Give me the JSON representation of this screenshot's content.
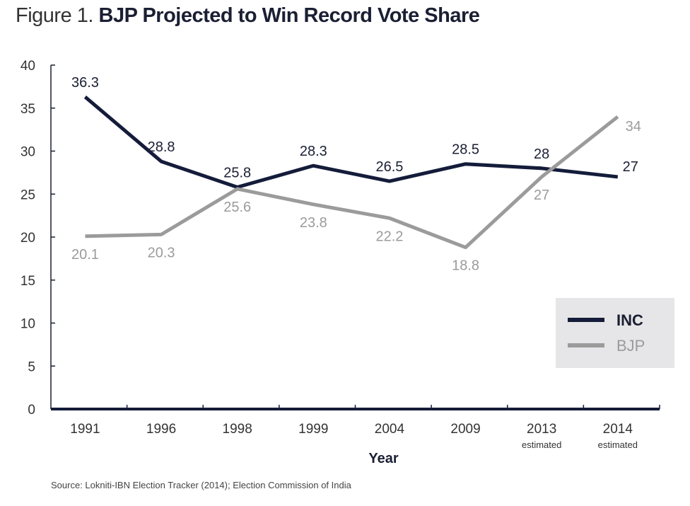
{
  "title_prefix": "Figure 1.",
  "title_main": "BJP Projected to Win Record Vote Share",
  "source": "Source: Lokniti-IBN Election Tracker (2014); Election Commission of India",
  "chart_data": {
    "type": "line",
    "title": "Figure 1. BJP Projected to Win Record Vote Share",
    "xlabel": "Year",
    "ylabel": "",
    "categories": [
      "1991",
      "1996",
      "1998",
      "1999",
      "2004",
      "2009",
      "2013",
      "2014"
    ],
    "category_sublabels": [
      "",
      "",
      "",
      "",
      "",
      "",
      "estimated",
      "estimated"
    ],
    "ylim": [
      0,
      40
    ],
    "yticks": [
      0,
      5,
      10,
      15,
      20,
      25,
      30,
      35,
      40
    ],
    "grid": false,
    "legend": "right",
    "series": [
      {
        "name": "INC",
        "color": "#141c3a",
        "values": [
          36.3,
          28.8,
          25.8,
          28.3,
          26.5,
          28.5,
          28,
          27
        ]
      },
      {
        "name": "BJP",
        "color": "#9b9b9b",
        "values": [
          20.1,
          20.3,
          25.6,
          23.8,
          22.2,
          18.8,
          27,
          34
        ]
      }
    ]
  }
}
